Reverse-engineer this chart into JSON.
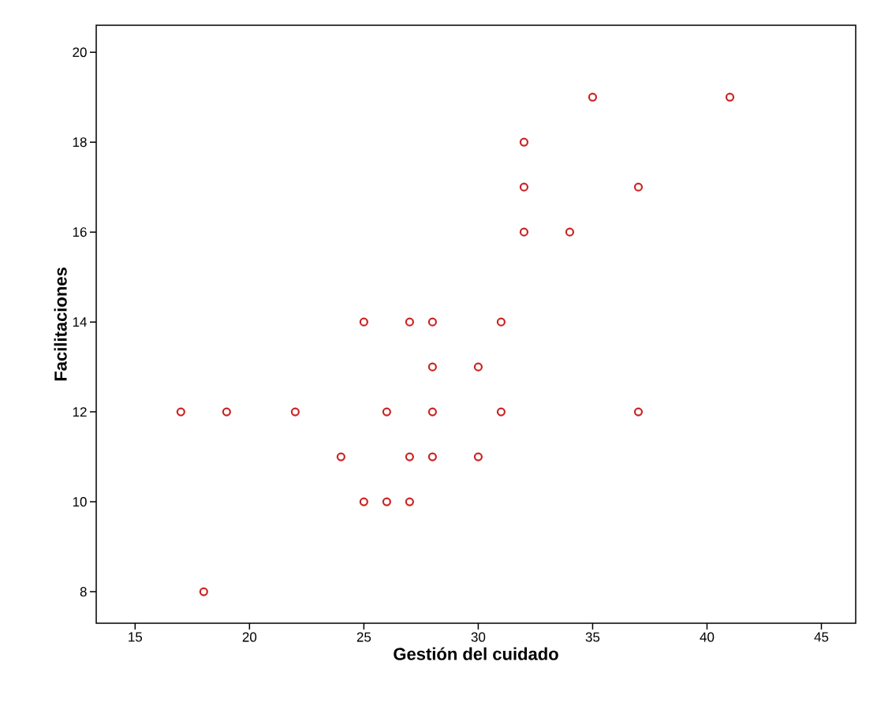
{
  "chart_data": {
    "type": "scatter",
    "xlabel": "Gestión del cuidado",
    "ylabel": "Facilitaciones",
    "x": [
      17,
      19,
      22,
      24,
      25,
      25,
      26,
      26,
      27,
      27,
      27,
      28,
      28,
      28,
      28,
      30,
      30,
      31,
      31,
      32,
      32,
      32,
      34,
      35,
      37,
      37,
      41,
      18
    ],
    "values": [
      12,
      12,
      12,
      11,
      14,
      10,
      10,
      12,
      10,
      14,
      11,
      14,
      13,
      12,
      11,
      11,
      13,
      14,
      12,
      18,
      17,
      16,
      16,
      19,
      17,
      12,
      19,
      8
    ],
    "color": "#cc2222",
    "marker": "circle",
    "xlim": [
      13.3,
      46.5
    ],
    "ylim": [
      7.3,
      20.6
    ],
    "xticks": [
      15,
      20,
      25,
      30,
      35,
      40,
      45
    ],
    "yticks": [
      8,
      10,
      12,
      14,
      16,
      18,
      20
    ]
  }
}
